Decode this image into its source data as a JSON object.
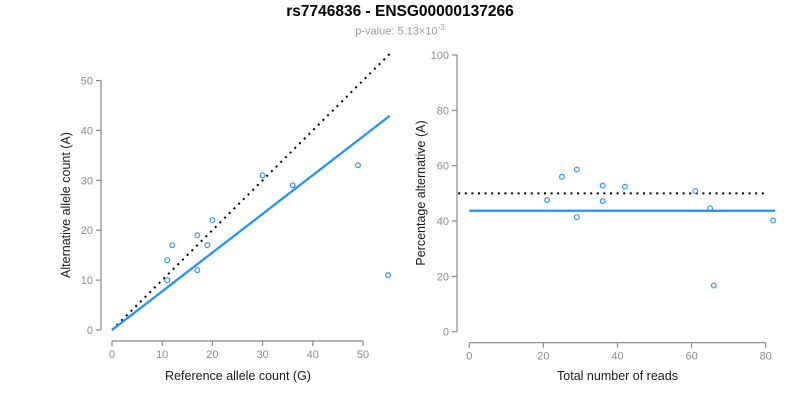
{
  "header": {
    "title": "rs7746836 - ENSG00000137266",
    "subtitle": {
      "prefix": "p-value: ",
      "mantissa": "5.13",
      "times": "×10",
      "exponent": "-3"
    }
  },
  "colors": {
    "points": "#1E90FF",
    "fit_line": "#1E90FF",
    "reference_line": "#000000",
    "axis": "#888888",
    "tick_label": "#8c8c8c",
    "title": "#000000",
    "subtitle": "#9a9a9a",
    "axis_label": "#1a1a1a",
    "background": "#ffffff"
  },
  "chart_data": [
    {
      "type": "scatter",
      "name": "allele-counts-scatter",
      "title": "",
      "xlabel": "Reference allele count (G)",
      "ylabel": "Alternative allele count (A)",
      "xlim": [
        0,
        55
      ],
      "ylim": [
        0,
        55
      ],
      "xticks": [
        0,
        10,
        20,
        30,
        40,
        50
      ],
      "yticks": [
        0,
        10,
        20,
        30,
        40,
        50
      ],
      "grid": false,
      "points": [
        [
          11,
          10
        ],
        [
          11,
          14
        ],
        [
          12,
          17
        ],
        [
          17,
          12
        ],
        [
          17,
          19
        ],
        [
          19,
          17
        ],
        [
          20,
          22
        ],
        [
          30,
          31
        ],
        [
          36,
          29
        ],
        [
          49,
          33
        ],
        [
          55,
          11
        ]
      ],
      "lines": [
        {
          "name": "identity-reference",
          "style": "dotted",
          "color": "#000000",
          "from": [
            0,
            0
          ],
          "to": [
            55.3,
            55.3
          ]
        },
        {
          "name": "fitted-ratio",
          "style": "solid",
          "color": "#1E90FF",
          "from": [
            0,
            0
          ],
          "to": [
            55.3,
            42.9
          ]
        }
      ]
    },
    {
      "type": "scatter",
      "name": "percentage-vs-reads-scatter",
      "title": "",
      "xlabel": "Total number of reads",
      "ylabel": "Percentage alternative (A)",
      "xlim": [
        0,
        82
      ],
      "ylim": [
        0,
        100
      ],
      "xticks": [
        0,
        20,
        40,
        60,
        80
      ],
      "yticks": [
        0,
        20,
        40,
        60,
        80,
        100
      ],
      "grid": false,
      "points": [
        [
          21,
          47.6
        ],
        [
          25,
          56.0
        ],
        [
          29,
          58.6
        ],
        [
          29,
          41.4
        ],
        [
          36,
          52.8
        ],
        [
          36,
          47.2
        ],
        [
          42,
          52.4
        ],
        [
          61,
          50.8
        ],
        [
          65,
          44.6
        ],
        [
          66,
          16.7
        ],
        [
          82,
          40.2
        ]
      ],
      "lines": [
        {
          "name": "expected-50pct",
          "style": "dotted",
          "color": "#000000",
          "from": [
            -3,
            50
          ],
          "to": [
            80.7,
            50
          ]
        },
        {
          "name": "observed-ratio",
          "style": "solid",
          "color": "#1E90FF",
          "from": [
            0,
            43.7
          ],
          "to": [
            82.5,
            43.7
          ]
        }
      ]
    }
  ]
}
